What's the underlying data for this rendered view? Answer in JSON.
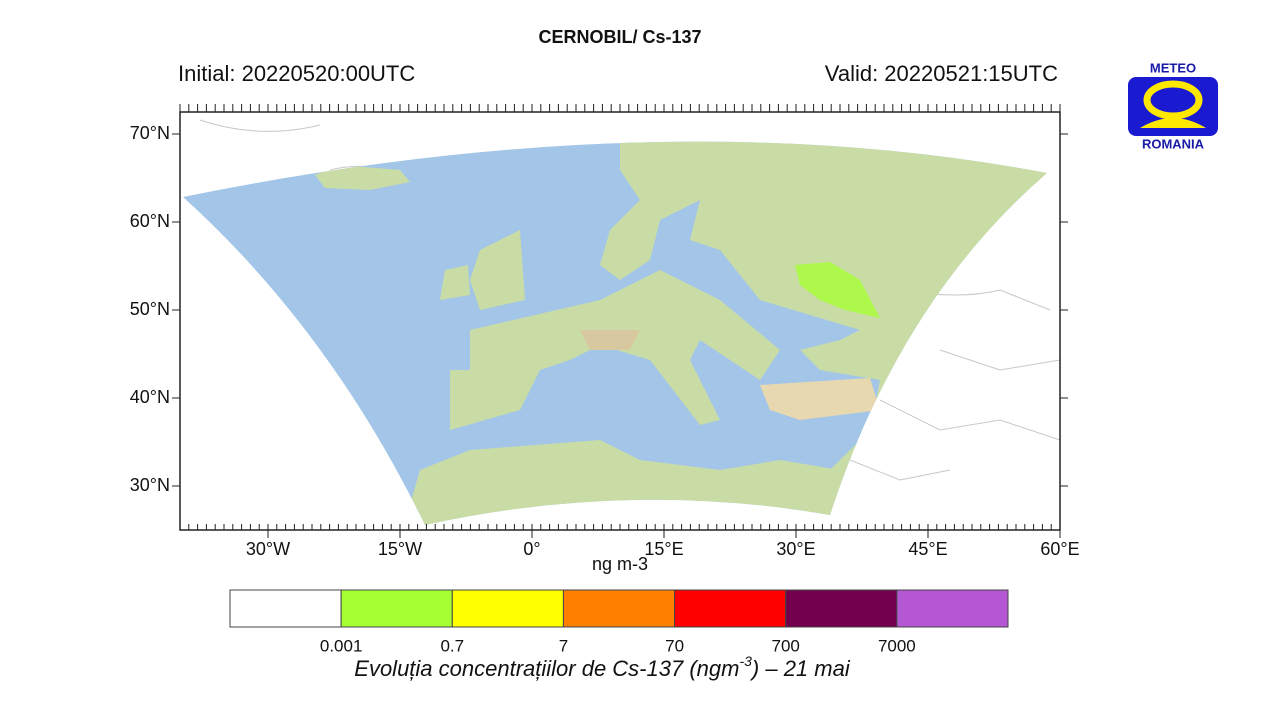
{
  "title": "CERNOBIL/ Cs-137",
  "initial": "Initial: 20220520:00UTC",
  "valid": "Valid: 20220521:15UTC",
  "logo": {
    "top": "METEO",
    "bottom": "ROMANIA"
  },
  "map": {
    "lat_labels": [
      "70°N",
      "60°N",
      "50°N",
      "40°N",
      "30°N"
    ],
    "lon_labels": [
      "30°W",
      "15°W",
      "0°",
      "15°E",
      "30°E",
      "45°E",
      "60°E"
    ]
  },
  "colorbar": {
    "unit": "ng m-3",
    "colors": [
      "#ffffff",
      "#a6ff33",
      "#ffff00",
      "#ff8000",
      "#ff0000",
      "#73004d",
      "#b557d3"
    ],
    "labels": [
      "0.001",
      "0.7",
      "7",
      "70",
      "700",
      "7000"
    ]
  },
  "caption": {
    "before": "Evoluția concentrațiilor de Cs-137 (ngm",
    "sup": "-3",
    "after": ") – 21 mai"
  }
}
